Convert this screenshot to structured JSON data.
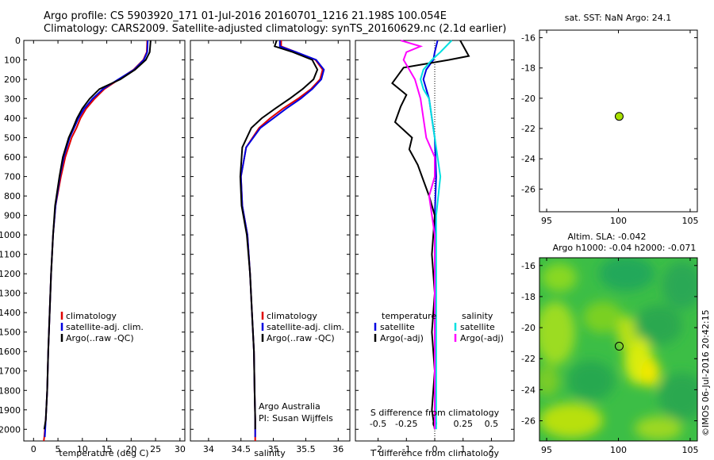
{
  "title_line1": "Argo profile: CS 5903920_171 01-Jul-2016 20160701_1216 21.198S 100.054E",
  "title_line2": "Climatology: CARS2009. Satellite-adjusted climatology: synTS_20160629.nc (2.1d earlier)",
  "depth_ticks": [
    "0",
    "100",
    "200",
    "300",
    "400",
    "500",
    "600",
    "700",
    "800",
    "900",
    "1000",
    "1100",
    "1200",
    "1300",
    "1400",
    "1500",
    "1600",
    "1700",
    "1800",
    "1900",
    "2000"
  ],
  "colors": {
    "climatology": "#e00000",
    "satellite": "#0000e0",
    "argo": "#000000",
    "sal_satellite": "#00e0e0",
    "sal_argo": "#ff00ff",
    "sst_dot": "#a8e000"
  },
  "chart_data": [
    {
      "type": "line",
      "name": "temperature",
      "xlabel": "temperature (deg C)",
      "xticks": [
        "0",
        "5",
        "10",
        "15",
        "20",
        "25",
        "30"
      ],
      "xlim": [
        -2,
        31
      ],
      "ylim": [
        2060,
        0
      ],
      "legend": [
        "climatology",
        "satellite-adj. clim.",
        "Argo(..raw -QC)"
      ],
      "series": [
        {
          "name": "climatology",
          "x": [
            23.3,
            23.2,
            22.5,
            20.5,
            17.5,
            14.5,
            12.5,
            10.8,
            9.6,
            8.8,
            7.8,
            6.5,
            5.6,
            4.5,
            4.0,
            3.6,
            3.3,
            3.0,
            2.8,
            2.5,
            2.2,
            2.1
          ],
          "y": [
            0,
            60,
            100,
            150,
            200,
            250,
            300,
            350,
            400,
            450,
            500,
            600,
            700,
            850,
            1000,
            1200,
            1400,
            1600,
            1800,
            1950,
            2040,
            2060
          ]
        },
        {
          "name": "satellite-adj. clim.",
          "x": [
            23.4,
            23.3,
            22.6,
            20.6,
            17.4,
            14.2,
            12.1,
            10.4,
            9.2,
            8.3,
            7.4,
            6.2,
            5.4,
            4.5,
            4.0,
            3.6,
            3.3,
            3.0,
            2.8,
            2.5,
            2.3
          ],
          "y": [
            0,
            60,
            100,
            150,
            200,
            250,
            300,
            350,
            400,
            450,
            500,
            600,
            700,
            850,
            1000,
            1200,
            1400,
            1600,
            1800,
            1950,
            2040
          ]
        },
        {
          "name": "Argo(..raw -QC)",
          "x": [
            24.0,
            23.8,
            23.0,
            20.8,
            17.8,
            13.5,
            11.5,
            10.0,
            8.9,
            8.1,
            7.2,
            6.0,
            5.3,
            4.4,
            4.0,
            3.6,
            3.3,
            3.0,
            2.8,
            2.5,
            2.2
          ],
          "y": [
            0,
            60,
            100,
            150,
            200,
            250,
            300,
            350,
            400,
            450,
            500,
            600,
            700,
            850,
            1000,
            1200,
            1400,
            1600,
            1800,
            1950,
            2000
          ]
        }
      ],
      "annotation": ""
    },
    {
      "type": "line",
      "name": "salinity",
      "xlabel": "salinity",
      "xticks": [
        "34",
        "34.5",
        "35",
        "35.5",
        "36"
      ],
      "xlim": [
        33.72,
        36.18
      ],
      "ylim": [
        2060,
        0
      ],
      "legend": [
        "climatology",
        "satellite-adj. clim.",
        "Argo(..raw -QC)"
      ],
      "series": [
        {
          "name": "climatology",
          "x": [
            35.12,
            35.12,
            35.35,
            35.65,
            35.76,
            35.72,
            35.58,
            35.38,
            35.15,
            34.95,
            34.78,
            34.58,
            34.5,
            34.52,
            34.6,
            34.64,
            34.67,
            34.7,
            34.71,
            34.72,
            34.72
          ],
          "y": [
            0,
            30,
            60,
            100,
            150,
            200,
            250,
            300,
            350,
            400,
            450,
            550,
            700,
            850,
            1000,
            1200,
            1400,
            1600,
            1800,
            1950,
            2060
          ]
        },
        {
          "name": "satellite-adj. clim.",
          "x": [
            35.1,
            35.1,
            35.35,
            35.66,
            35.78,
            35.74,
            35.6,
            35.42,
            35.2,
            35.0,
            34.8,
            34.58,
            34.5,
            34.52,
            34.6,
            34.64,
            34.67,
            34.7,
            34.71,
            34.72,
            34.72
          ],
          "y": [
            0,
            30,
            60,
            100,
            150,
            200,
            250,
            300,
            350,
            400,
            450,
            550,
            700,
            850,
            1000,
            1200,
            1400,
            1600,
            1800,
            1950,
            2040
          ]
        },
        {
          "name": "Argo(..raw -QC)",
          "x": [
            35.05,
            35.02,
            35.3,
            35.6,
            35.68,
            35.62,
            35.45,
            35.25,
            35.03,
            34.82,
            34.66,
            34.52,
            34.49,
            34.51,
            34.59,
            34.64,
            34.67,
            34.7,
            34.71,
            34.72,
            34.72
          ],
          "y": [
            0,
            30,
            60,
            100,
            150,
            200,
            250,
            300,
            350,
            400,
            450,
            550,
            700,
            850,
            1000,
            1200,
            1400,
            1600,
            1800,
            1950,
            2000
          ]
        }
      ],
      "annotation_line1": "Argo Australia",
      "annotation_line2": "PI: Susan Wijffels"
    },
    {
      "type": "line",
      "name": "difference",
      "xlabel": "T difference from climatology",
      "xlabel2": "S difference from climatology",
      "xticks_bottom": [
        "-2",
        "-1",
        "0",
        "1",
        "2"
      ],
      "xticks_top": [
        "-0.5",
        "-0.25",
        "0",
        "0.25",
        "0.5"
      ],
      "xlim": [
        -2.8,
        2.8
      ],
      "ylim": [
        2060,
        0
      ],
      "legend_headers": [
        "temperature",
        "salinity"
      ],
      "legend": [
        "satellite",
        "Argo(-adj)",
        "satellite",
        "Argo(-adj)"
      ],
      "series": [
        {
          "name": "T satellite",
          "x": [
            0.1,
            0.0,
            -0.05,
            -0.3,
            -0.4,
            -0.3,
            -0.2,
            -0.1,
            0.0,
            0.05,
            0.0,
            0.0,
            0.0,
            0.0
          ],
          "y": [
            0,
            60,
            100,
            150,
            200,
            250,
            300,
            400,
            500,
            700,
            900,
            1200,
            1600,
            2000
          ]
        },
        {
          "name": "T Argo(-adj)",
          "x": [
            0.9,
            1.2,
            0.5,
            -1.1,
            -1.3,
            -1.5,
            -1.0,
            -1.2,
            -1.4,
            -0.8,
            -0.9,
            -0.6,
            -0.4,
            -0.2,
            0.0,
            -0.1,
            0.0,
            -0.1,
            0.0,
            -0.1,
            0.0
          ],
          "y": [
            0,
            80,
            100,
            140,
            180,
            220,
            280,
            340,
            420,
            500,
            560,
            640,
            720,
            800,
            900,
            1100,
            1300,
            1500,
            1700,
            1900,
            2000
          ]
        },
        {
          "name": "S satellite",
          "x": [
            0.6,
            0.2,
            -0.1,
            -0.4,
            -0.5,
            -0.4,
            -0.2,
            -0.1,
            0.0,
            0.2,
            0.05,
            0.05,
            0.05,
            0.05
          ],
          "y": [
            0,
            60,
            100,
            150,
            200,
            250,
            300,
            400,
            500,
            700,
            900,
            1200,
            1600,
            2000
          ]
        },
        {
          "name": "S Argo(-adj)",
          "x": [
            -1.2,
            -0.5,
            -1.0,
            -1.1,
            -0.9,
            -0.7,
            -0.6,
            -0.5,
            -0.4,
            -0.3,
            0.0,
            0.0,
            -0.2,
            0.0,
            0.0,
            0.0
          ],
          "y": [
            0,
            30,
            60,
            100,
            150,
            200,
            250,
            300,
            400,
            500,
            600,
            700,
            800,
            1000,
            1500,
            2000
          ]
        }
      ]
    },
    {
      "type": "scatter",
      "name": "sst_map",
      "title": "sat. SST: NaN Argo: 24.1",
      "xticks": [
        "95",
        "100",
        "105"
      ],
      "yticks": [
        "-16",
        "-18",
        "-20",
        "-22",
        "-24",
        "-26"
      ],
      "xlim": [
        94.5,
        105.5
      ],
      "ylim": [
        -27.5,
        -15.5
      ],
      "points": [
        {
          "x": 100.054,
          "y": -21.198
        }
      ]
    },
    {
      "type": "heatmap",
      "name": "sla_map",
      "title_line1": "Altim. SLA: -0.042",
      "title_line2": "Argo h1000: -0.04 h2000: -0.071",
      "xticks": [
        "95",
        "100",
        "105"
      ],
      "yticks": [
        "-16",
        "-18",
        "-20",
        "-22",
        "-24",
        "-26"
      ],
      "xlim": [
        94.5,
        105.5
      ],
      "ylim": [
        -27.3,
        -15.5
      ],
      "points": [
        {
          "x": 100.054,
          "y": -21.198
        }
      ]
    }
  ],
  "credit": "©IMOS 06-Jul-2016 20:42:15"
}
